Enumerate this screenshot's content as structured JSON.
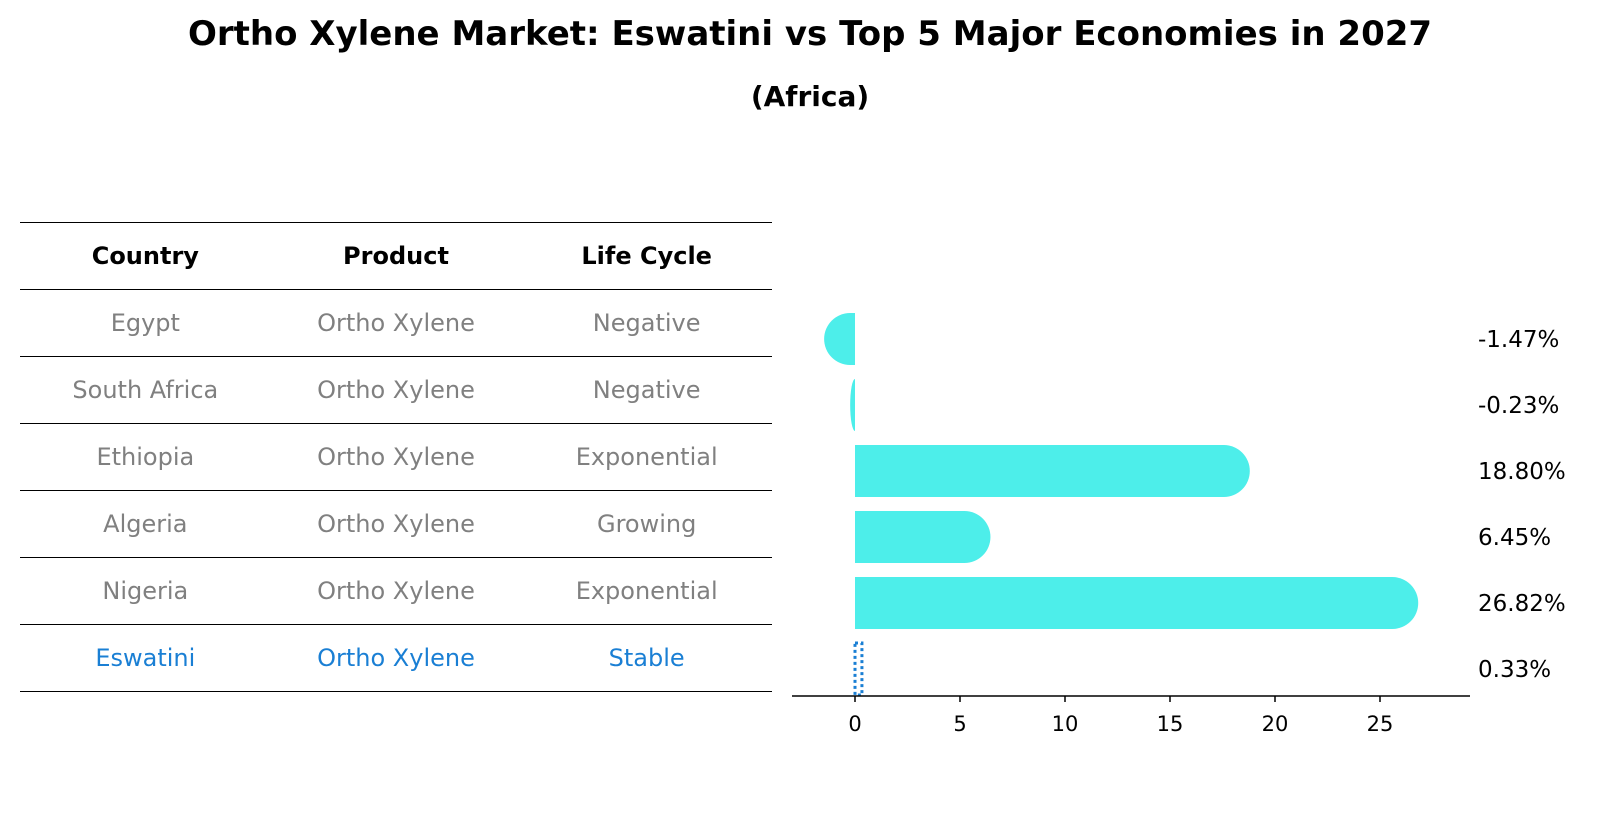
{
  "chart_data": {
    "type": "bar",
    "title": "Ortho Xylene Market: Eswatini vs Top 5 Major Economies in 2027",
    "subtitle": "(Africa)",
    "table": {
      "headers": [
        "Country",
        "Product",
        "Life Cycle"
      ],
      "rows": [
        {
          "country": "Egypt",
          "product": "Ortho Xylene",
          "life_cycle": "Negative"
        },
        {
          "country": "South Africa",
          "product": "Ortho Xylene",
          "life_cycle": "Negative"
        },
        {
          "country": "Ethiopia",
          "product": "Ortho Xylene",
          "life_cycle": "Exponential"
        },
        {
          "country": "Algeria",
          "product": "Ortho Xylene",
          "life_cycle": "Growing"
        },
        {
          "country": "Nigeria",
          "product": "Ortho Xylene",
          "life_cycle": "Exponential"
        },
        {
          "country": "Eswatini",
          "product": "Ortho Xylene",
          "life_cycle": "Stable"
        }
      ]
    },
    "categories": [
      "Egypt",
      "South Africa",
      "Ethiopia",
      "Algeria",
      "Nigeria",
      "Eswatini"
    ],
    "values": [
      -1.47,
      -0.23,
      18.8,
      6.45,
      26.82,
      0.33
    ],
    "value_labels": [
      "-1.47%",
      "-0.23%",
      "18.80%",
      "6.45%",
      "26.82%",
      "0.33%"
    ],
    "highlight": "Eswatini",
    "xlim": [
      -3,
      28
    ],
    "xticks": [
      0,
      5,
      10,
      15,
      20,
      25
    ],
    "colors": {
      "bar": "#4deeea",
      "highlight": "#1a7fd4",
      "table_text": "#808080"
    }
  }
}
